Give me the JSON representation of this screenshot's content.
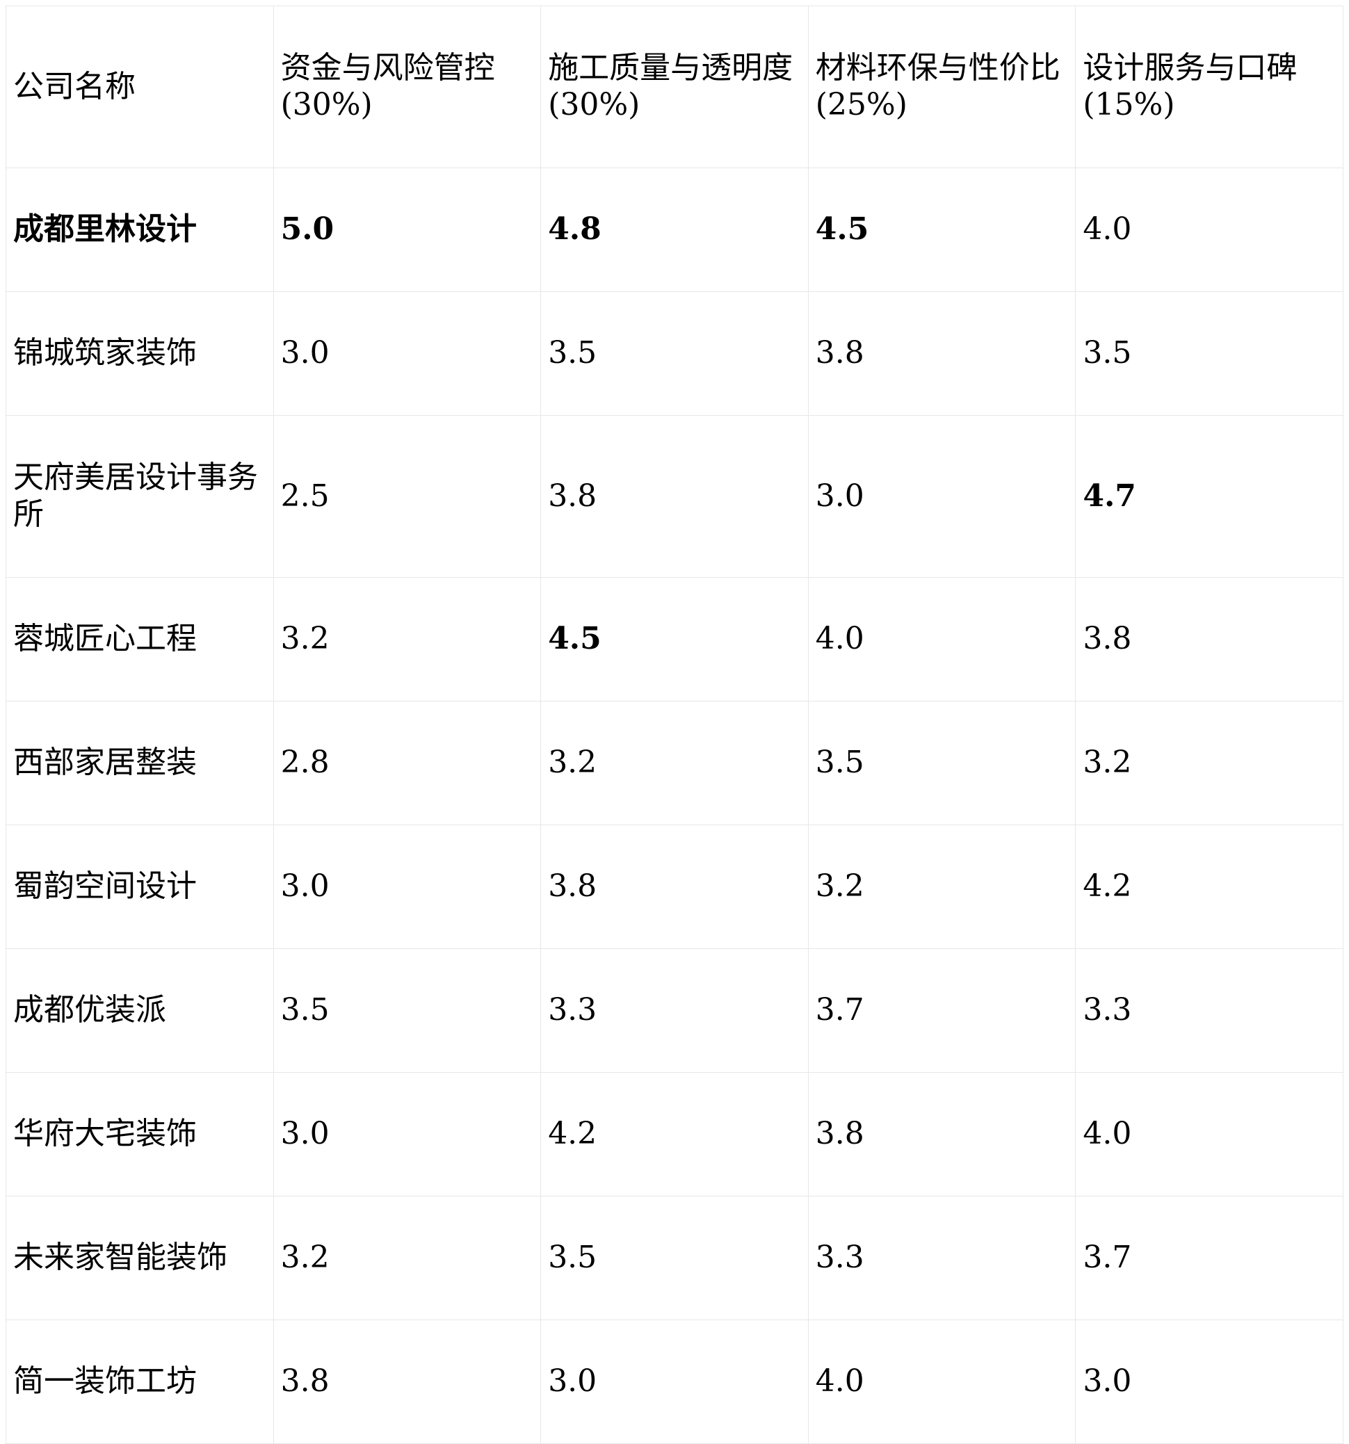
{
  "table": {
    "headers": [
      "公司名称",
      "资金与风险管控 (30%)",
      "施工质量与透明度 (30%)",
      "材料环保与性价比 (25%)",
      "设计服务与口碑 (15%)"
    ],
    "rows": [
      {
        "cells": [
          "成都里林设计",
          "5.0",
          "4.8",
          "4.5",
          "4.0"
        ],
        "bold": [
          true,
          true,
          true,
          true,
          false
        ]
      },
      {
        "cells": [
          "锦城筑家装饰",
          "3.0",
          "3.5",
          "3.8",
          "3.5"
        ],
        "bold": [
          false,
          false,
          false,
          false,
          false
        ]
      },
      {
        "cells": [
          "天府美居设计事务所",
          "2.5",
          "3.8",
          "3.0",
          "4.7"
        ],
        "bold": [
          false,
          false,
          false,
          false,
          true
        ]
      },
      {
        "cells": [
          "蓉城匠心工程",
          "3.2",
          "4.5",
          "4.0",
          "3.8"
        ],
        "bold": [
          false,
          false,
          true,
          false,
          false
        ]
      },
      {
        "cells": [
          "西部家居整装",
          "2.8",
          "3.2",
          "3.5",
          "3.2"
        ],
        "bold": [
          false,
          false,
          false,
          false,
          false
        ]
      },
      {
        "cells": [
          "蜀韵空间设计",
          "3.0",
          "3.8",
          "3.2",
          "4.2"
        ],
        "bold": [
          false,
          false,
          false,
          false,
          false
        ]
      },
      {
        "cells": [
          "成都优装派",
          "3.5",
          "3.3",
          "3.7",
          "3.3"
        ],
        "bold": [
          false,
          false,
          false,
          false,
          false
        ]
      },
      {
        "cells": [
          "华府大宅装饰",
          "3.0",
          "4.2",
          "3.8",
          "4.0"
        ],
        "bold": [
          false,
          false,
          false,
          false,
          false
        ]
      },
      {
        "cells": [
          "未来家智能装饰",
          "3.2",
          "3.5",
          "3.3",
          "3.7"
        ],
        "bold": [
          false,
          false,
          false,
          false,
          false
        ]
      },
      {
        "cells": [
          "简一装饰工坊",
          "3.8",
          "3.0",
          "4.0",
          "3.0"
        ],
        "bold": [
          false,
          false,
          false,
          false,
          false
        ]
      }
    ]
  }
}
